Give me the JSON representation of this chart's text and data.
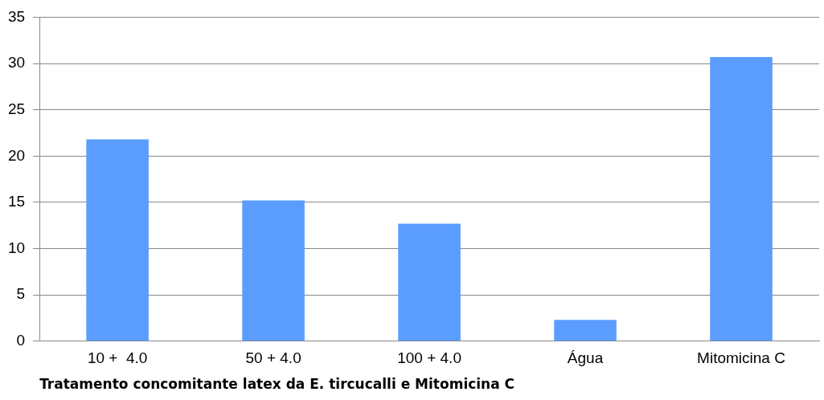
{
  "chart_data": {
    "type": "bar",
    "xlabel": "Tratamento concomitante latex da E. tircucalli e Mitomicina C",
    "categories": [
      "10 +  4.0",
      "50 + 4.0",
      "100 + 4.0",
      "Água",
      "Mitomicina C"
    ],
    "values": [
      21.8,
      15.2,
      12.7,
      2.3,
      30.7
    ],
    "color": "#5b9dff",
    "ylim": [
      0,
      35
    ],
    "yticks": [
      0,
      5,
      10,
      15,
      20,
      25,
      30,
      35
    ],
    "grid": "y"
  }
}
